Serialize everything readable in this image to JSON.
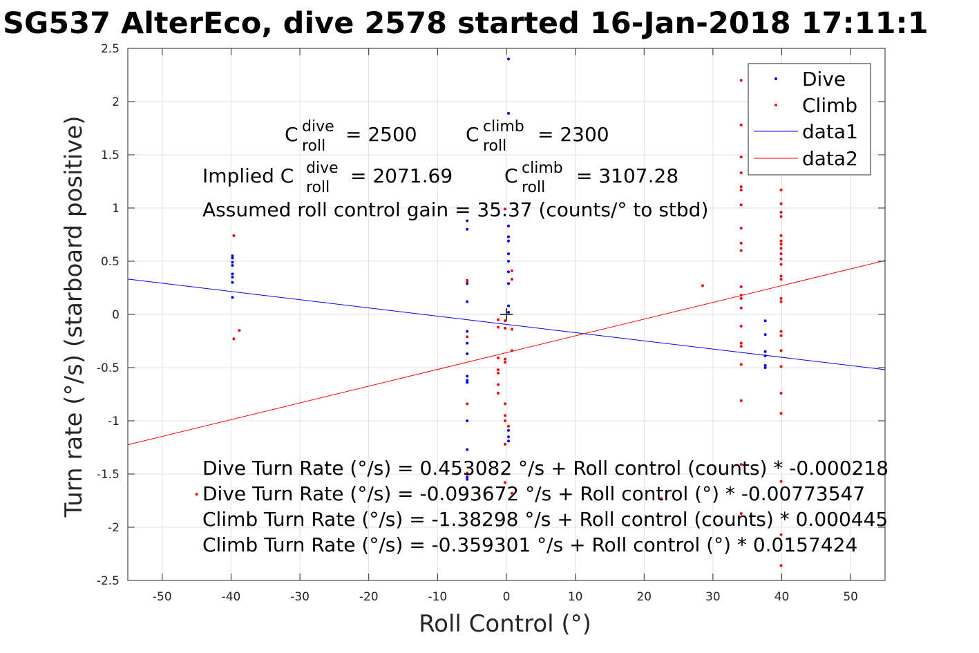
{
  "chart_data": {
    "type": "scatter",
    "title": "SG537 AlterEco, dive 2578 started 16-Jan-2018 17:11:1",
    "xlabel": "Roll Control (°)",
    "ylabel": "Turn rate (°/s) (starboard positive)",
    "xlim": [
      -55,
      55
    ],
    "ylim": [
      -2.5,
      2.5
    ],
    "xticks": [
      -50,
      -40,
      -30,
      -20,
      -10,
      0,
      10,
      20,
      30,
      40,
      50
    ],
    "yticks": [
      -2.5,
      -2,
      -1.5,
      -1,
      -0.5,
      0,
      0.5,
      1,
      1.5,
      2,
      2.5
    ],
    "grid": true,
    "legend_placement": "top-right",
    "series": [
      {
        "name": "Dive",
        "kind": "points",
        "color": "#0000ff",
        "points": [
          [
            -39.8,
            0.55
          ],
          [
            -39.8,
            0.53
          ],
          [
            -39.8,
            0.49
          ],
          [
            -39.8,
            0.46
          ],
          [
            -39.8,
            0.38
          ],
          [
            -39.8,
            0.35
          ],
          [
            -39.8,
            0.3
          ],
          [
            -39.8,
            0.16
          ],
          [
            -5.7,
            0.88
          ],
          [
            -5.7,
            0.8
          ],
          [
            -5.7,
            0.29
          ],
          [
            -5.7,
            0.12
          ],
          [
            -5.7,
            -0.16
          ],
          [
            -5.7,
            -0.27
          ],
          [
            -5.7,
            -0.37
          ],
          [
            -5.7,
            -0.58
          ],
          [
            -5.7,
            -0.62
          ],
          [
            -5.7,
            -0.64
          ],
          [
            -5.7,
            -1.0
          ],
          [
            -5.7,
            -1.27
          ],
          [
            -5.7,
            -1.5
          ],
          [
            -5.7,
            -1.53
          ],
          [
            -5.7,
            -1.55
          ],
          [
            0.3,
            2.4
          ],
          [
            0.3,
            1.89
          ],
          [
            0.3,
            0.83
          ],
          [
            0.3,
            0.73
          ],
          [
            0.3,
            0.69
          ],
          [
            0.3,
            0.57
          ],
          [
            0.3,
            0.5
          ],
          [
            0.3,
            0.4
          ],
          [
            0.3,
            0.29
          ],
          [
            0.3,
            0.08
          ],
          [
            0.3,
            0.02
          ],
          [
            0.3,
            -1.09
          ],
          [
            0.3,
            -1.15
          ],
          [
            0.3,
            -1.19
          ],
          [
            37.6,
            -0.06
          ],
          [
            37.6,
            -0.19
          ],
          [
            37.6,
            -0.35
          ],
          [
            37.6,
            -0.39
          ],
          [
            37.6,
            -0.48
          ],
          [
            37.6,
            -0.5
          ]
        ]
      },
      {
        "name": "Climb",
        "kind": "points",
        "color": "#ff0000",
        "points": [
          [
            -39.6,
            0.74
          ],
          [
            -39.6,
            -0.23
          ],
          [
            -38.8,
            -0.15
          ],
          [
            -45.0,
            -1.69
          ],
          [
            -5.7,
            0.32
          ],
          [
            -5.7,
            0.31
          ],
          [
            -5.7,
            -0.21
          ],
          [
            -5.7,
            -0.84
          ],
          [
            -5.7,
            -1.49
          ],
          [
            -1.2,
            -0.05
          ],
          [
            -1.2,
            -0.12
          ],
          [
            -1.2,
            -0.41
          ],
          [
            -1.2,
            -0.52
          ],
          [
            -1.2,
            -0.55
          ],
          [
            -1.2,
            -0.66
          ],
          [
            -1.2,
            -0.74
          ],
          [
            -0.2,
            -0.06
          ],
          [
            -0.2,
            -0.13
          ],
          [
            -0.2,
            -0.42
          ],
          [
            -0.2,
            -0.45
          ],
          [
            -0.2,
            -0.84
          ],
          [
            -0.2,
            -0.95
          ],
          [
            -0.2,
            -1.0
          ],
          [
            -0.2,
            -1.22
          ],
          [
            -0.2,
            -1.58
          ],
          [
            -0.2,
            0.99
          ],
          [
            0.8,
            0.41
          ],
          [
            0.8,
            0.33
          ],
          [
            0.8,
            -0.14
          ],
          [
            0.8,
            -0.34
          ],
          [
            0.8,
            -1.68
          ],
          [
            0.3,
            -1.05
          ],
          [
            28.5,
            0.27
          ],
          [
            22.5,
            -1.73
          ],
          [
            34.1,
            2.2
          ],
          [
            34.1,
            1.78
          ],
          [
            34.1,
            1.48
          ],
          [
            34.1,
            1.33
          ],
          [
            34.1,
            1.2
          ],
          [
            34.1,
            1.17
          ],
          [
            34.1,
            1.03
          ],
          [
            34.1,
            0.81
          ],
          [
            34.1,
            0.67
          ],
          [
            34.1,
            0.6
          ],
          [
            34.1,
            0.26
          ],
          [
            34.1,
            0.18
          ],
          [
            34.1,
            0.15
          ],
          [
            34.1,
            0.06
          ],
          [
            34.1,
            -0.11
          ],
          [
            34.1,
            -0.27
          ],
          [
            34.1,
            -0.3
          ],
          [
            34.1,
            -0.47
          ],
          [
            34.1,
            -0.81
          ],
          [
            34.1,
            -1.41
          ],
          [
            34.1,
            -1.87
          ],
          [
            39.9,
            1.17
          ],
          [
            39.9,
            1.04
          ],
          [
            39.9,
            0.96
          ],
          [
            39.9,
            0.92
          ],
          [
            39.9,
            0.74
          ],
          [
            39.9,
            0.69
          ],
          [
            39.9,
            0.66
          ],
          [
            39.9,
            0.62
          ],
          [
            39.9,
            0.57
          ],
          [
            39.9,
            0.52
          ],
          [
            39.9,
            0.47
          ],
          [
            39.9,
            0.36
          ],
          [
            39.9,
            0.33
          ],
          [
            39.9,
            0.15
          ],
          [
            39.9,
            0.12
          ],
          [
            39.9,
            -0.16
          ],
          [
            39.9,
            -0.2
          ],
          [
            39.9,
            -0.34
          ],
          [
            39.9,
            -0.49
          ],
          [
            39.9,
            -0.74
          ],
          [
            39.9,
            -0.93
          ],
          [
            39.9,
            -1.57
          ],
          [
            39.9,
            -2.07
          ],
          [
            39.9,
            -2.36
          ]
        ]
      },
      {
        "name": "data1",
        "kind": "line",
        "color": "#0000ff",
        "intercept": -0.093672,
        "slope": -0.00773547
      },
      {
        "name": "data2",
        "kind": "line",
        "color": "#ff0000",
        "intercept": -0.359301,
        "slope": 0.0157424
      }
    ],
    "marker": {
      "x": 0,
      "y": 0,
      "symbol": "+"
    },
    "annotations": {
      "c_roll_dive": "= 2500",
      "c_roll_climb": "= 2300",
      "implied_prefix": "Implied C",
      "implied_dive": "= 2071.69",
      "implied_climb": "= 3107.28",
      "c_letter": "C",
      "sup_dive": "dive",
      "sup_climb": "climb",
      "sub_roll": "roll",
      "gain": "Assumed roll control gain = 35.37 (counts/° to stbd)",
      "eq1": "Dive Turn Rate (°/s) = 0.453082 °/s + Roll control (counts) * -0.000218",
      "eq2": "Dive Turn Rate (°/s) = -0.093672 °/s + Roll control (°) * -0.00773547",
      "eq3": "Climb Turn Rate (°/s) = -1.38298 °/s + Roll control (counts) * 0.000445",
      "eq4": "Climb Turn Rate (°/s) = -0.359301 °/s + Roll control (°) * 0.0157424"
    }
  }
}
